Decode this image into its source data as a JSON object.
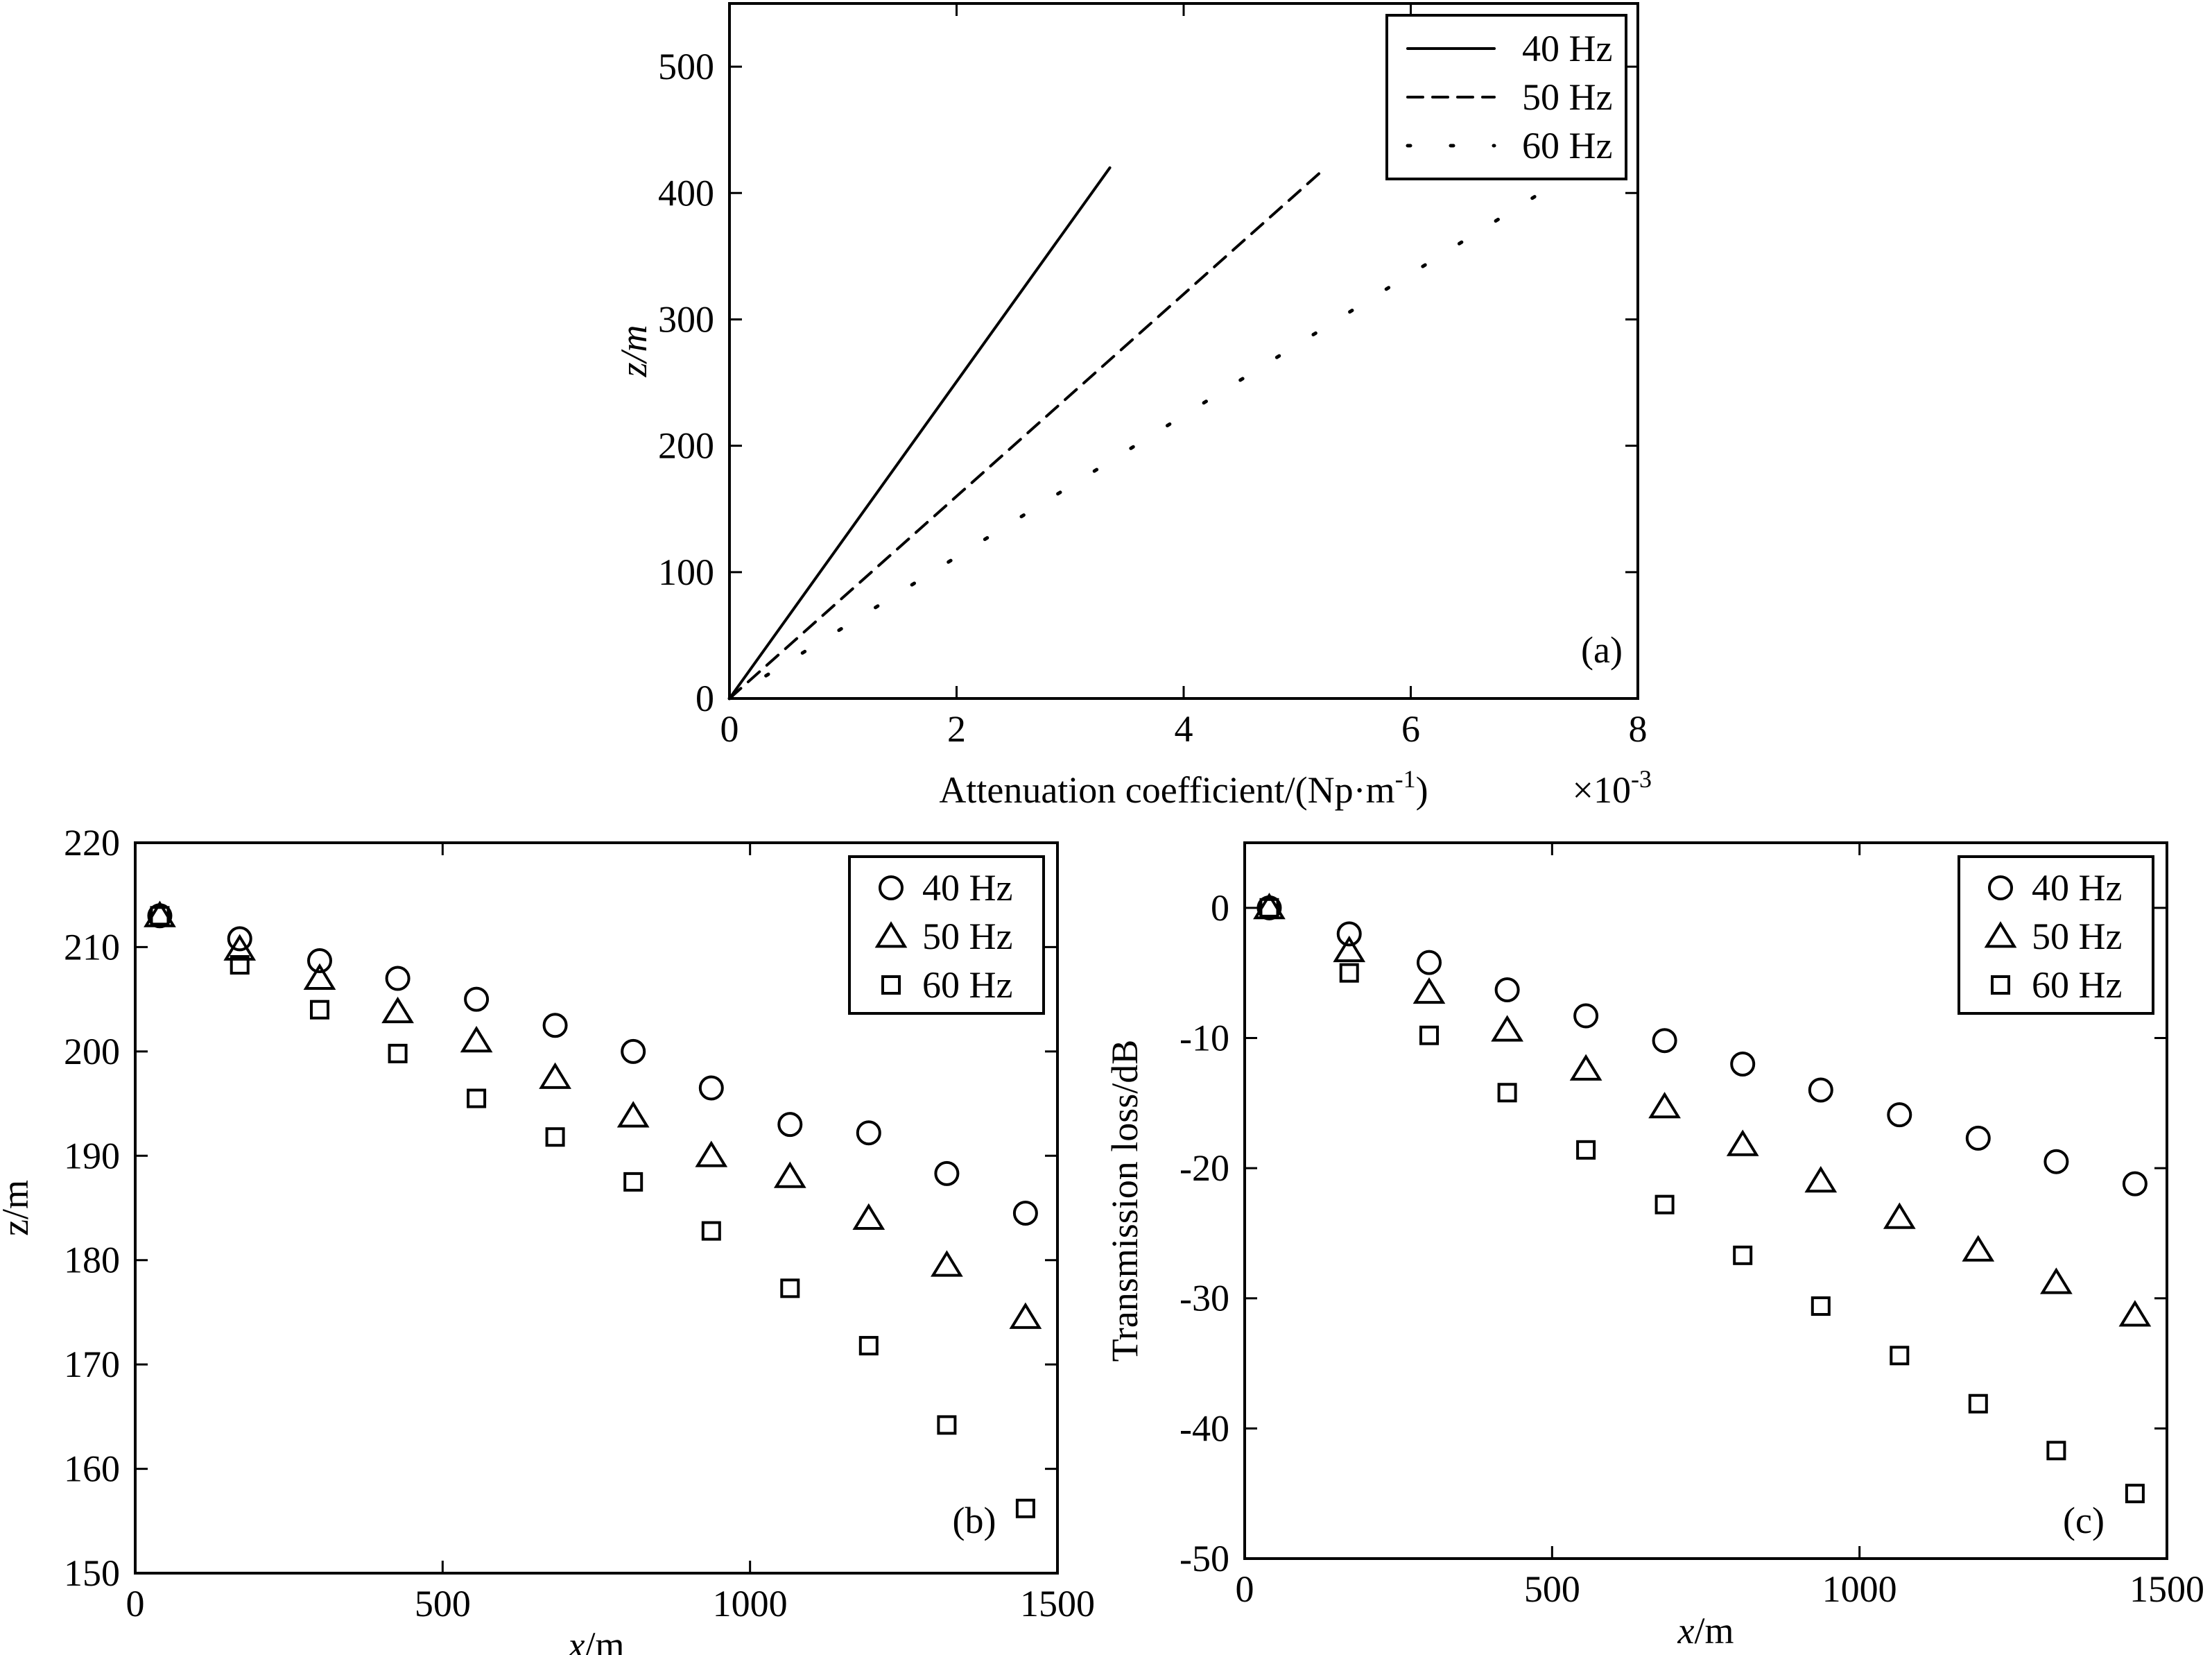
{
  "chart_data": [
    {
      "panel": "a",
      "type": "line",
      "tag": "(a)",
      "xlabel": "Attenuation coefficient/(Np·m",
      "xlabel_sup": "-1",
      "xlabel_end": ")",
      "ylabel": "z/m",
      "multiplier_base": "×10",
      "multiplier_exp": "-3",
      "xlim": [
        0,
        8
      ],
      "ylim": [
        0,
        550
      ],
      "xticks": [
        0,
        2,
        4,
        6,
        8
      ],
      "yticks": [
        0,
        100,
        200,
        300,
        400,
        500
      ],
      "grid": false,
      "legend_position": "top-right",
      "series": [
        {
          "name": "40 Hz",
          "style": "solid",
          "x": [
            0,
            3.35
          ],
          "y": [
            0,
            420
          ]
        },
        {
          "name": "50 Hz",
          "style": "dashed",
          "x": [
            0,
            5.25
          ],
          "y": [
            0,
            420
          ]
        },
        {
          "name": "60 Hz",
          "style": "dotted",
          "x": [
            0,
            7.5
          ],
          "y": [
            0,
            420
          ]
        }
      ]
    },
    {
      "panel": "b",
      "type": "scatter",
      "tag": "(b)",
      "xlabel": "x",
      "xlabel_unit": "/m",
      "ylabel": "z/m",
      "xlim": [
        0,
        1500
      ],
      "ylim": [
        150,
        220
      ],
      "xticks": [
        0,
        500,
        1000,
        1500
      ],
      "yticks": [
        150,
        160,
        170,
        180,
        190,
        200,
        210,
        220
      ],
      "grid": false,
      "legend_position": "top-right",
      "x": [
        40,
        170,
        300,
        427,
        555,
        683,
        810,
        937,
        1065,
        1193,
        1320,
        1448
      ],
      "series": [
        {
          "name": "40 Hz",
          "marker": "circle",
          "values": [
            213.0,
            210.8,
            208.7,
            207.0,
            205.0,
            202.5,
            200.0,
            196.5,
            193.0,
            192.2,
            188.3,
            184.5
          ]
        },
        {
          "name": "50 Hz",
          "marker": "triangle",
          "values": [
            213.0,
            209.8,
            207.0,
            203.8,
            201.0,
            197.5,
            193.8,
            190.0,
            188.0,
            184.0,
            179.5,
            174.5
          ]
        },
        {
          "name": "60 Hz",
          "marker": "square",
          "values": [
            213.0,
            208.3,
            204.0,
            199.8,
            195.5,
            191.8,
            187.5,
            182.8,
            177.3,
            171.8,
            164.2,
            156.2
          ]
        }
      ]
    },
    {
      "panel": "c",
      "type": "scatter",
      "tag": "(c)",
      "xlabel": "x",
      "xlabel_unit": "/m",
      "ylabel": "Transmission loss/dB",
      "xlim": [
        0,
        1500
      ],
      "ylim": [
        -50,
        5
      ],
      "xticks": [
        0,
        500,
        1000,
        1500
      ],
      "yticks": [
        -50,
        -40,
        -30,
        -20,
        -10,
        0
      ],
      "grid": false,
      "legend_position": "top-right",
      "x": [
        40,
        170,
        300,
        427,
        555,
        683,
        810,
        937,
        1065,
        1193,
        1320,
        1448
      ],
      "series": [
        {
          "name": "40 Hz",
          "marker": "circle",
          "values": [
            0,
            -2.0,
            -4.2,
            -6.3,
            -8.3,
            -10.2,
            -12.0,
            -14.0,
            -15.9,
            -17.7,
            -19.5,
            -21.2
          ]
        },
        {
          "name": "50 Hz",
          "marker": "triangle",
          "values": [
            0,
            -3.3,
            -6.5,
            -9.4,
            -12.4,
            -15.3,
            -18.2,
            -21.0,
            -23.8,
            -26.3,
            -28.8,
            -31.3
          ]
        },
        {
          "name": "60 Hz",
          "marker": "square",
          "values": [
            0,
            -5.0,
            -9.8,
            -14.2,
            -18.6,
            -22.8,
            -26.7,
            -30.6,
            -34.4,
            -38.1,
            -41.7,
            -45.0
          ]
        }
      ]
    }
  ]
}
